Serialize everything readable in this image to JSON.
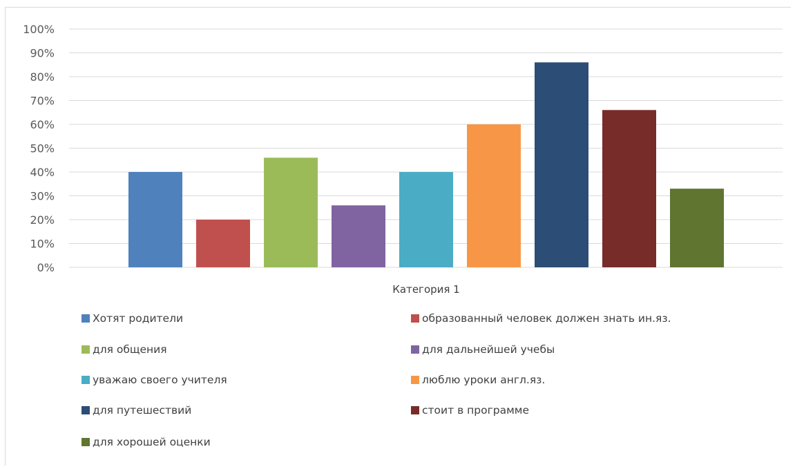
{
  "chart_data": {
    "type": "bar",
    "categories": [
      "Категория 1"
    ],
    "ylim": [
      0,
      100
    ],
    "y_ticks": [
      "0%",
      "10%",
      "20%",
      "30%",
      "40%",
      "50%",
      "60%",
      "70%",
      "80%",
      "90%",
      "100%"
    ],
    "series": [
      {
        "name": "Хотят родители",
        "values": [
          40
        ],
        "color": "#4f81bd"
      },
      {
        "name": "образованный человек должен знать ин.яз.",
        "values": [
          20
        ],
        "color": "#c0504d"
      },
      {
        "name": "для общения",
        "values": [
          46
        ],
        "color": "#9bbb59"
      },
      {
        "name": "для дальнейшей учебы",
        "values": [
          26
        ],
        "color": "#8064a2"
      },
      {
        "name": "уважаю своего учителя",
        "values": [
          40
        ],
        "color": "#4bacc6"
      },
      {
        "name": "люблю уроки англ.яз.",
        "values": [
          60
        ],
        "color": "#f79646"
      },
      {
        "name": "для путешествий",
        "values": [
          86
        ],
        "color": "#2c4d75"
      },
      {
        "name": "стоит в программе",
        "values": [
          66
        ],
        "color": "#772c2a"
      },
      {
        "name": "для хорошей оценки",
        "values": [
          33
        ],
        "color": "#5f7530"
      }
    ],
    "grid": true,
    "legend_position": "bottom"
  }
}
